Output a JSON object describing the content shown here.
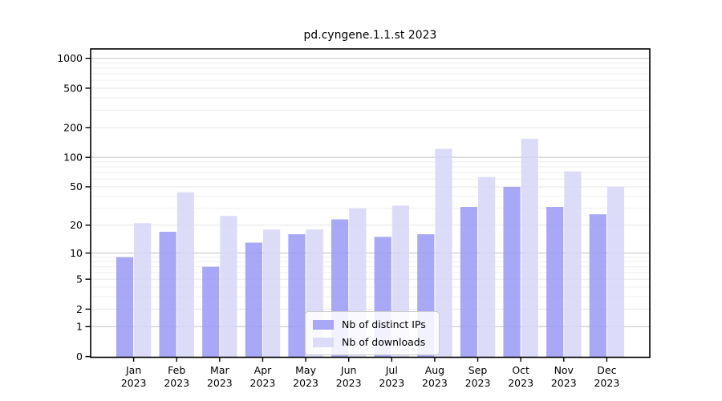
{
  "title": "pd.cyngene.1.1.st 2023",
  "chart_data": {
    "type": "bar",
    "title": "pd.cyngene.1.1.st 2023",
    "y_scale": "log10(1+value)",
    "grid": true,
    "legend_position": "lower center",
    "categories": [
      "Jan 2023",
      "Feb 2023",
      "Mar 2023",
      "Apr 2023",
      "May 2023",
      "Jun 2023",
      "Jul 2023",
      "Aug 2023",
      "Sep 2023",
      "Oct 2023",
      "Nov 2023",
      "Dec 2023"
    ],
    "series": [
      {
        "name": "Nb of distinct IPs",
        "color": "#9999f4",
        "values": [
          9,
          17,
          7,
          13,
          16,
          23,
          15,
          16,
          31,
          50,
          31,
          26
        ]
      },
      {
        "name": "Nb of downloads",
        "color": "#d6d6f7",
        "values": [
          21,
          44,
          25,
          18,
          18,
          30,
          32,
          122,
          63,
          154,
          72,
          50
        ]
      }
    ],
    "bar_opacity": 0.85,
    "y_ticks_labeled": [
      0,
      1,
      2,
      5,
      10,
      20,
      50,
      100,
      200,
      500,
      1000
    ],
    "y_major_gridlines": [
      1,
      10,
      100,
      1000
    ],
    "ylim": [
      0,
      1260
    ],
    "xlabel": "",
    "ylabel": ""
  },
  "colors": {
    "major_grid": "#c2c2c2",
    "labeled_minor_grid": "#e6e6e6",
    "minor_grid": "#efefef",
    "axis": "#000000",
    "text": "#000000"
  }
}
